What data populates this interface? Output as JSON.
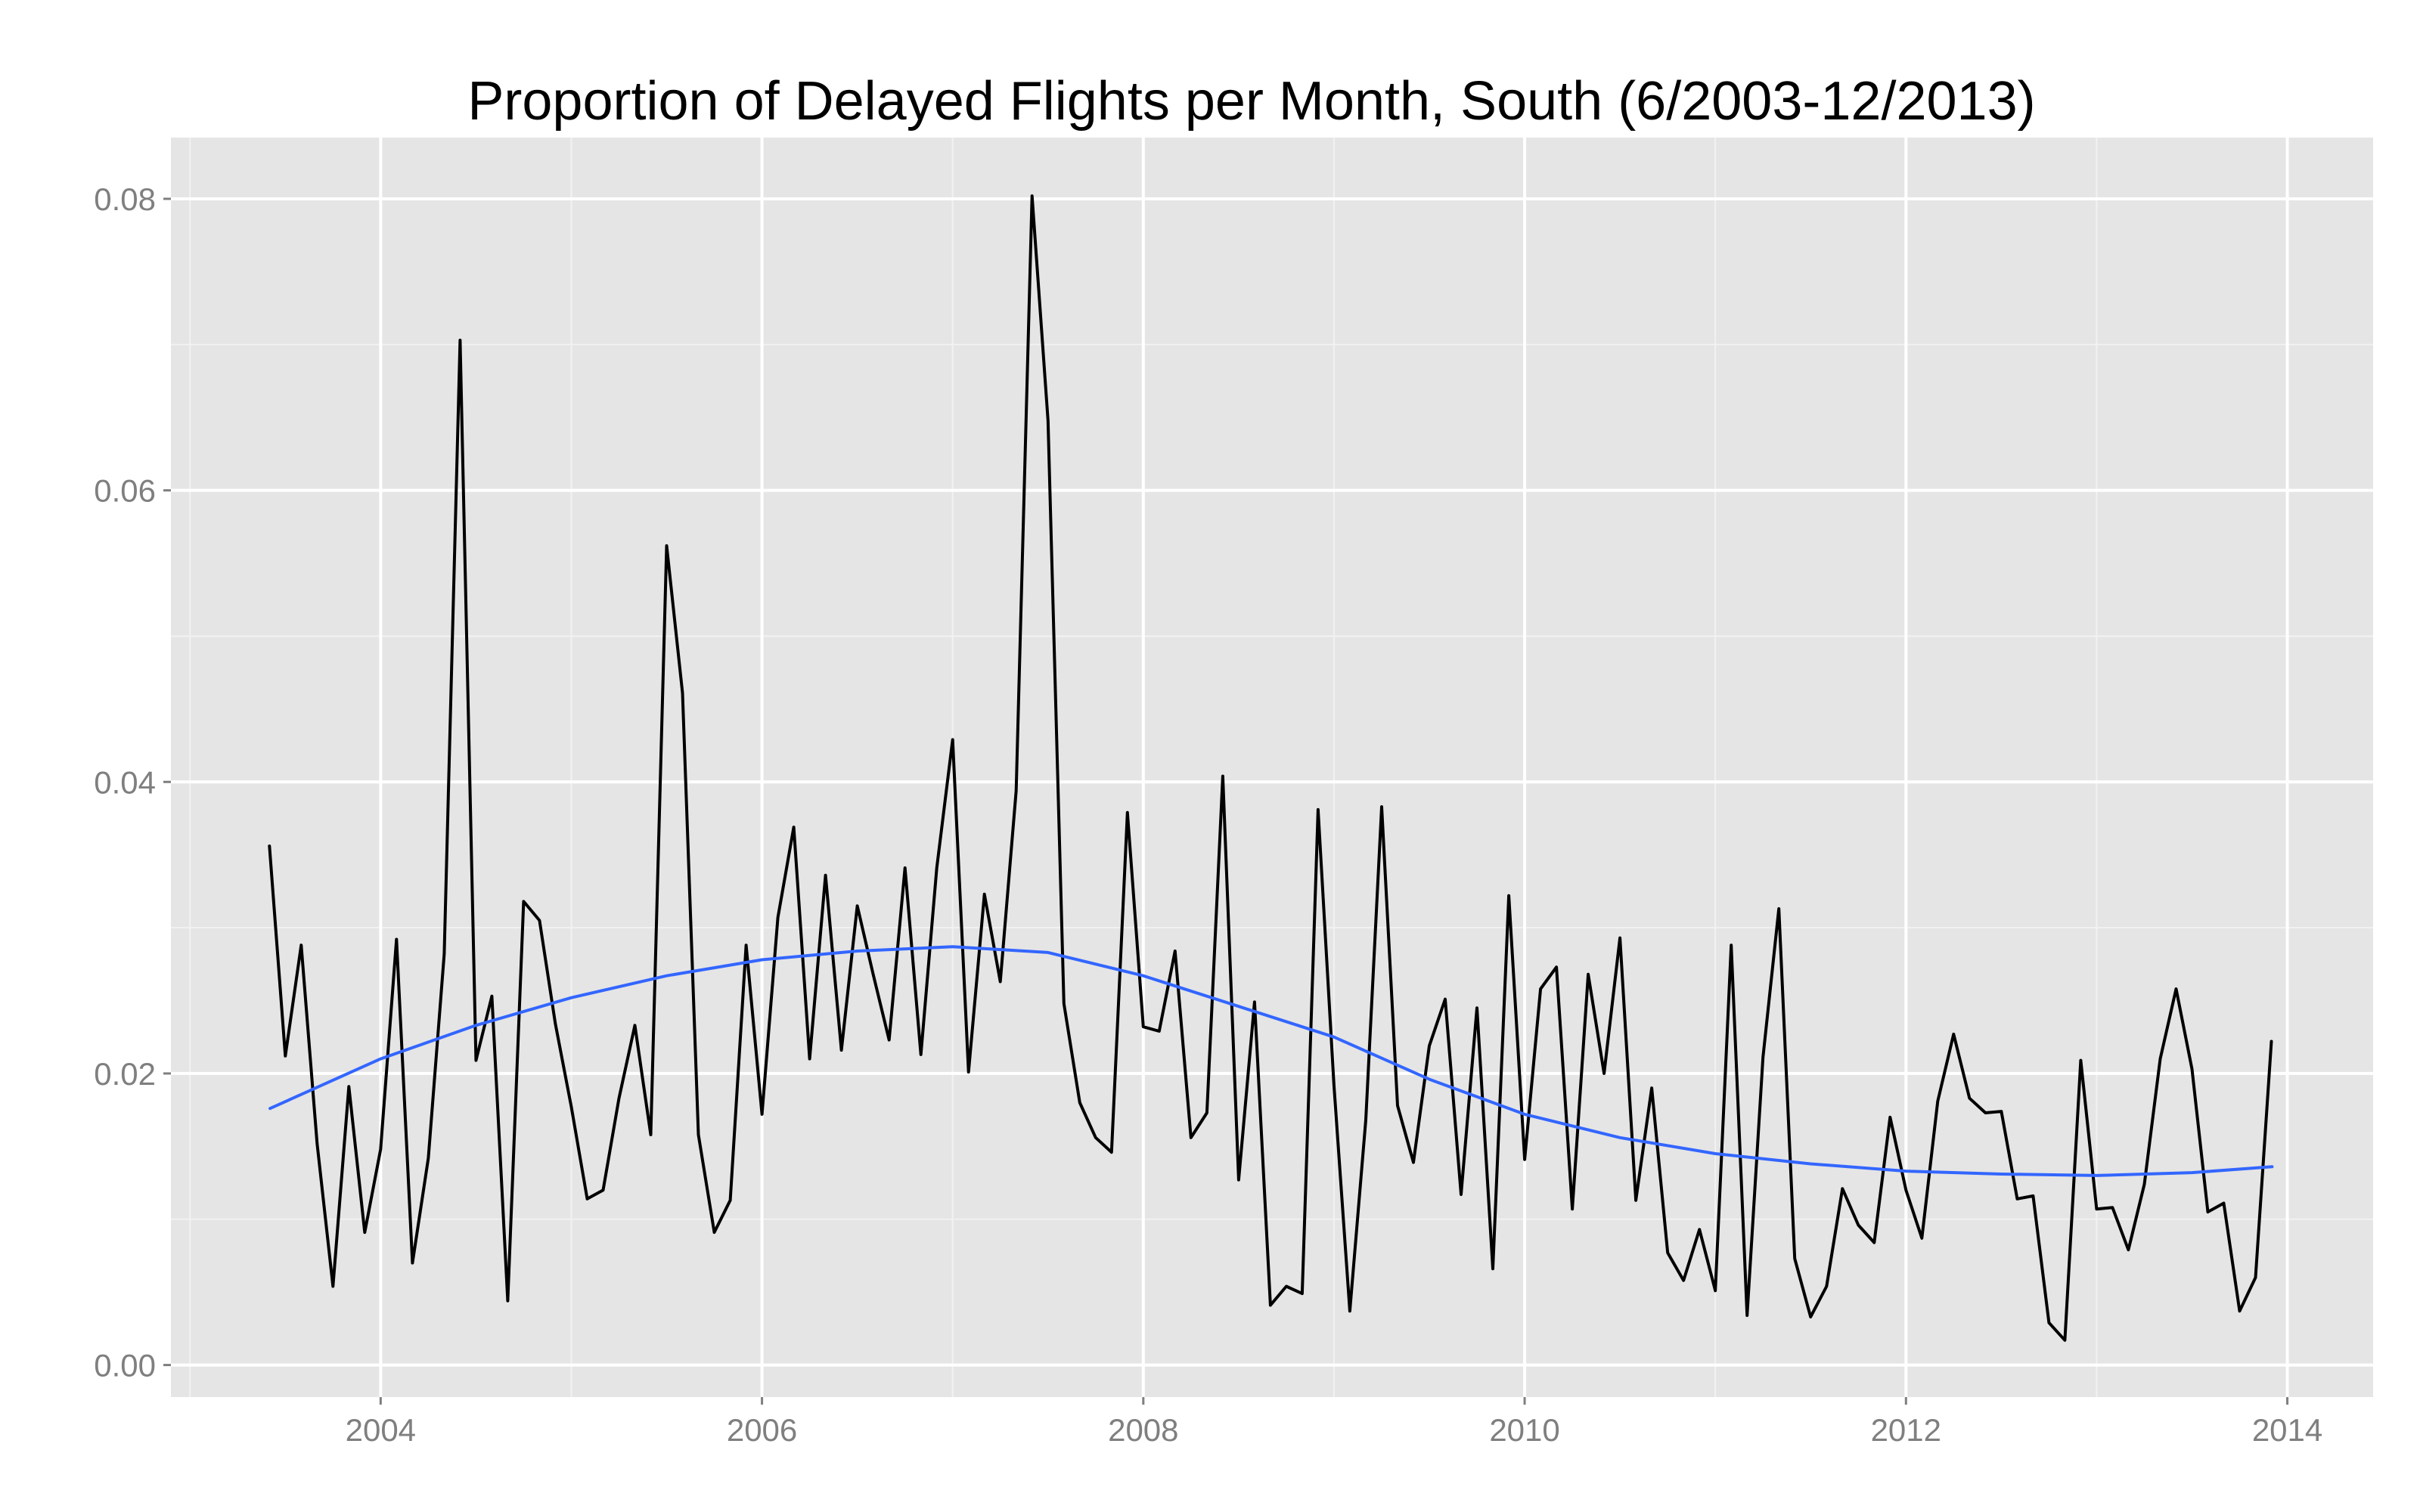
{
  "chart_data": {
    "type": "line",
    "title": "Proportion of Delayed Flights per Month, South (6/2003-12/2013)",
    "xlabel": "",
    "ylabel": "",
    "x_axis": {
      "ticks": [
        2004,
        2006,
        2008,
        2010,
        2012,
        2014
      ],
      "tick_labels": [
        "2004",
        "2006",
        "2008",
        "2010",
        "2012",
        "2014"
      ],
      "range": [
        2002.9,
        2014.45
      ]
    },
    "y_axis": {
      "ticks": [
        0.0,
        0.02,
        0.04,
        0.06,
        0.08
      ],
      "tick_labels": [
        "0.00",
        "0.02",
        "0.04",
        "0.06",
        "0.08"
      ],
      "range": [
        -0.0022,
        0.0842
      ]
    },
    "grid": true,
    "legend": "none",
    "colors": {
      "panel_background": "#e5e5e5",
      "grid_major": "#ffffff",
      "grid_minor": "#f2f2f2",
      "observed_line": "#000000",
      "smooth_line": "#3366ff",
      "tick_label": "#7f7f7f",
      "tick_mark": "#7f7f7f"
    },
    "series": [
      {
        "x": [
          "2003-06",
          "2003-07",
          "2003-08",
          "2003-09",
          "2003-10",
          "2003-11",
          "2003-12",
          "2004-01",
          "2004-02",
          "2004-03",
          "2004-04",
          "2004-05",
          "2004-06",
          "2004-07",
          "2004-08",
          "2004-09",
          "2004-10",
          "2004-11",
          "2004-12",
          "2005-01",
          "2005-02",
          "2005-03",
          "2005-04",
          "2005-05",
          "2005-06",
          "2005-07",
          "2005-08",
          "2005-09",
          "2005-10",
          "2005-11",
          "2005-12",
          "2006-01",
          "2006-02",
          "2006-03",
          "2006-04",
          "2006-05",
          "2006-06",
          "2006-07",
          "2006-08",
          "2006-09",
          "2006-10",
          "2006-11",
          "2006-12",
          "2007-01",
          "2007-02",
          "2007-03",
          "2007-04",
          "2007-05",
          "2007-06",
          "2007-07",
          "2007-08",
          "2007-09",
          "2007-10",
          "2007-11",
          "2007-12",
          "2008-01",
          "2008-02",
          "2008-03",
          "2008-04",
          "2008-05",
          "2008-06",
          "2008-07",
          "2008-08",
          "2008-09",
          "2008-10",
          "2008-11",
          "2008-12",
          "2009-01",
          "2009-02",
          "2009-03",
          "2009-04",
          "2009-05",
          "2009-06",
          "2009-07",
          "2009-08",
          "2009-09",
          "2009-10",
          "2009-11",
          "2009-12",
          "2010-01",
          "2010-02",
          "2010-03",
          "2010-04",
          "2010-05",
          "2010-06",
          "2010-07",
          "2010-08",
          "2010-09",
          "2010-10",
          "2010-11",
          "2010-12",
          "2011-01",
          "2011-02",
          "2011-03",
          "2011-04",
          "2011-05",
          "2011-06",
          "2011-07",
          "2011-08",
          "2011-09",
          "2011-10",
          "2011-11",
          "2011-12",
          "2012-01",
          "2012-02",
          "2012-03",
          "2012-04",
          "2012-05",
          "2012-06",
          "2012-07",
          "2012-08",
          "2012-09",
          "2012-10",
          "2012-11",
          "2012-12",
          "2013-01",
          "2013-02",
          "2013-03",
          "2013-04",
          "2013-05",
          "2013-06",
          "2013-07",
          "2013-08",
          "2013-09",
          "2013-10",
          "2013-11",
          "2013-12"
        ],
        "values": [
          0.0356,
          0.0212,
          0.0288,
          0.0152,
          0.0054,
          0.0191,
          0.0091,
          0.0148,
          0.0292,
          0.007,
          0.0142,
          0.0282,
          0.0703,
          0.0209,
          0.0253,
          0.0044,
          0.0318,
          0.0305,
          0.0234,
          0.0177,
          0.0114,
          0.012,
          0.0183,
          0.0233,
          0.0158,
          0.0562,
          0.0461,
          0.0158,
          0.0091,
          0.0113,
          0.0288,
          0.0172,
          0.0307,
          0.0369,
          0.021,
          0.0336,
          0.0216,
          0.0315,
          0.0268,
          0.0223,
          0.0341,
          0.0213,
          0.0341,
          0.0429,
          0.0201,
          0.0323,
          0.0263,
          0.0394,
          0.0802,
          0.0648,
          0.0248,
          0.018,
          0.0156,
          0.0146,
          0.0379,
          0.0232,
          0.0229,
          0.0284,
          0.0156,
          0.0173,
          0.0404,
          0.0127,
          0.0249,
          0.0041,
          0.0054,
          0.0049,
          0.0381,
          0.0192,
          0.0037,
          0.0168,
          0.0383,
          0.0178,
          0.0139,
          0.0219,
          0.0251,
          0.0117,
          0.0245,
          0.0066,
          0.0322,
          0.0141,
          0.0258,
          0.0273,
          0.0107,
          0.0268,
          0.02,
          0.0293,
          0.0113,
          0.019,
          0.0077,
          0.0058,
          0.0093,
          0.0051,
          0.0288,
          0.0034,
          0.0211,
          0.0313,
          0.0073,
          0.0033,
          0.0054,
          0.0121,
          0.0096,
          0.0084,
          0.017,
          0.012,
          0.0087,
          0.0181,
          0.0227,
          0.0183,
          0.0173,
          0.0174,
          0.0114,
          0.0116,
          0.0029,
          0.0017,
          0.0209,
          0.0107,
          0.0108,
          0.0079,
          0.0124,
          0.021,
          0.0258,
          0.0203,
          0.0105,
          0.0111,
          0.0037,
          0.006,
          0.0222
        ]
      },
      {
        "x": [
          2003.42,
          2004.0,
          2004.5,
          2005.0,
          2005.5,
          2006.0,
          2006.5,
          2007.0,
          2007.5,
          2008.0,
          2008.5,
          2009.0,
          2009.5,
          2010.0,
          2010.5,
          2011.0,
          2011.5,
          2012.0,
          2012.5,
          2013.0,
          2013.5,
          2013.92
        ],
        "values": [
          0.0176,
          0.021,
          0.0233,
          0.0252,
          0.0267,
          0.0278,
          0.0284,
          0.0287,
          0.0283,
          0.0267,
          0.0246,
          0.0225,
          0.0196,
          0.0172,
          0.0156,
          0.0145,
          0.0138,
          0.0133,
          0.0131,
          0.013,
          0.0132,
          0.0136
        ]
      }
    ]
  }
}
